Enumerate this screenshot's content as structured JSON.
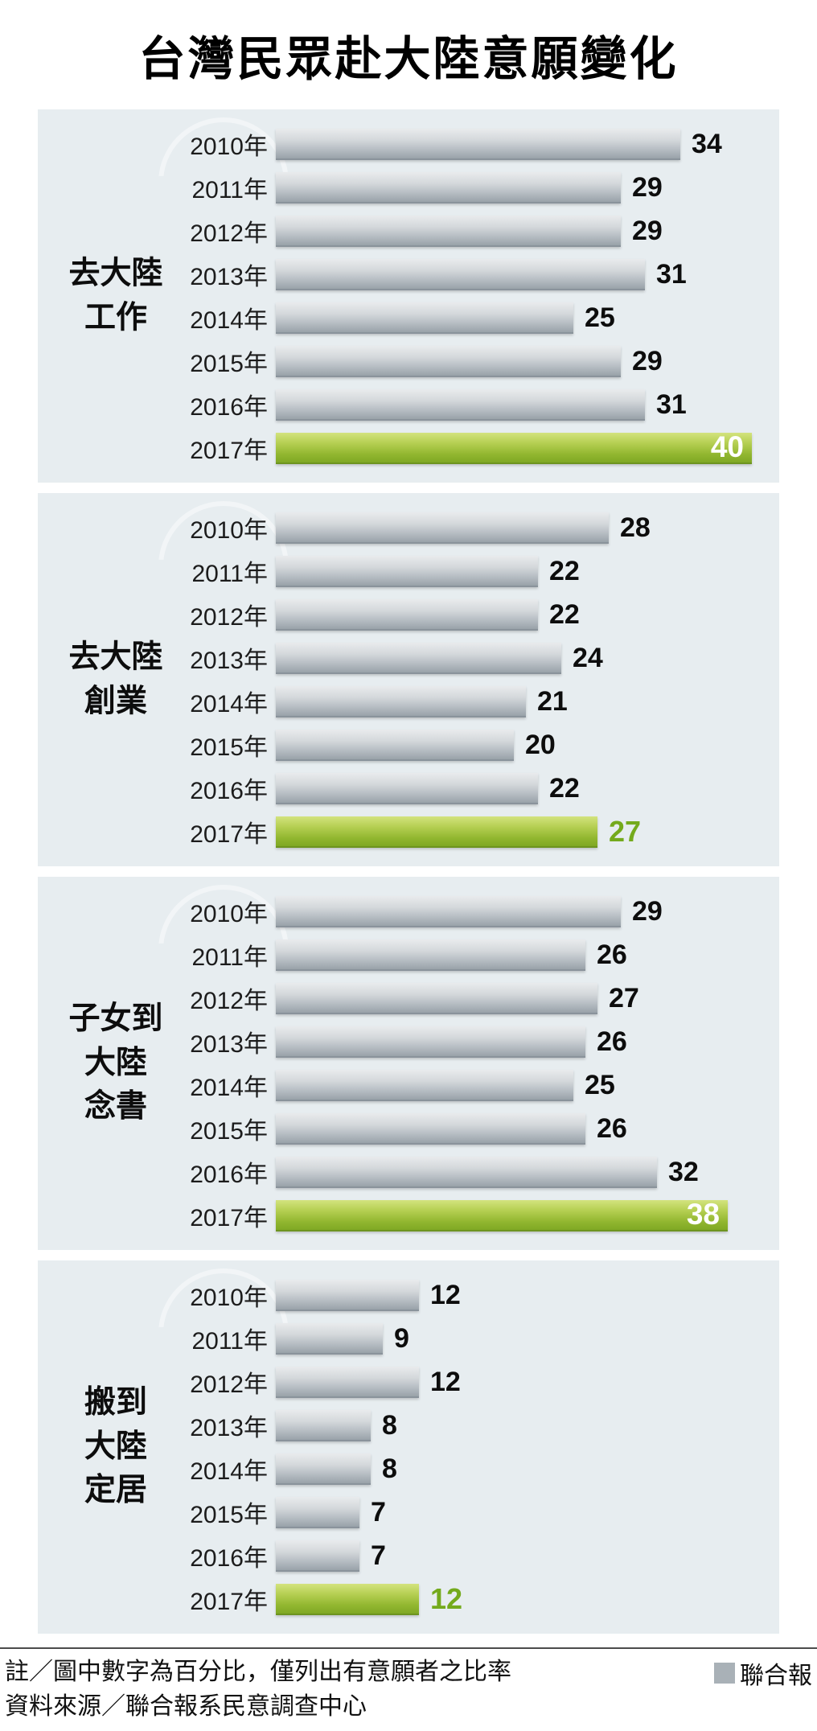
{
  "title": "台灣民眾赴大陸意願變化",
  "chart_data": {
    "type": "bar",
    "orientation": "horizontal",
    "unit": "percent",
    "categories": [
      "2010年",
      "2011年",
      "2012年",
      "2013年",
      "2014年",
      "2015年",
      "2016年",
      "2017年"
    ],
    "highlight_category": "2017年",
    "groups": [
      {
        "label": "去大陸\n工作",
        "values": [
          34,
          29,
          29,
          31,
          25,
          29,
          31,
          40
        ],
        "highlight_value_position": "inside"
      },
      {
        "label": "去大陸\n創業",
        "values": [
          28,
          22,
          22,
          24,
          21,
          20,
          22,
          27
        ],
        "highlight_value_position": "outside"
      },
      {
        "label": "子女到\n大陸\n念書",
        "values": [
          29,
          26,
          27,
          26,
          25,
          26,
          32,
          38
        ],
        "highlight_value_position": "inside"
      },
      {
        "label": "搬到\n大陸\n定居",
        "values": [
          12,
          9,
          12,
          8,
          8,
          7,
          7,
          12
        ],
        "highlight_value_position": "outside"
      }
    ],
    "colors": {
      "bar_gray": "#a9b1b7",
      "bar_highlight_green": "#8cb52e",
      "highlight_text_green": "#74aa1c",
      "panel_background": "#e7edf0"
    },
    "xlim": [
      0,
      42
    ],
    "value_labels_shown": true,
    "legend_position": "none"
  },
  "footer": {
    "note1": "註／圖中數字為百分比，僅列出有意願者之比率",
    "note2": "資料來源／聯合報系民意調查中心",
    "credit": "聯合報",
    "credit_icon": "gray-square-icon"
  }
}
